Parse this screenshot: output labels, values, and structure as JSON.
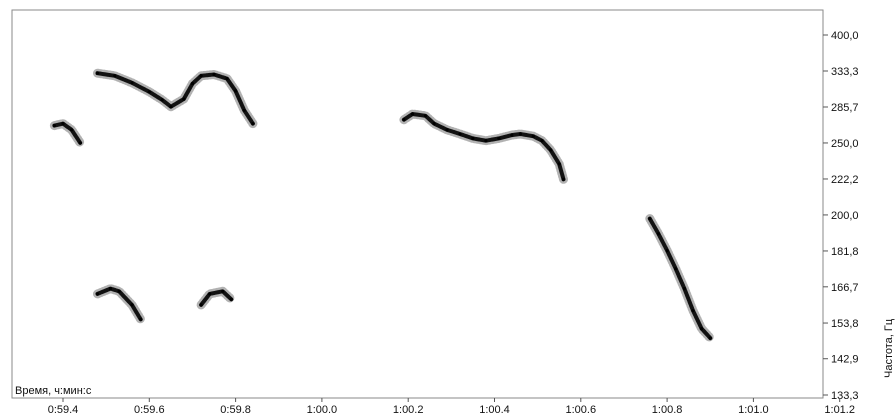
{
  "chart_data": {
    "type": "spectrogram",
    "xlabel": "Время, ч:мин:с",
    "ylabel": "Частота, Гц",
    "x_ticks": [
      "0:59.4",
      "0:59.6",
      "0:59.8",
      "1:00.0",
      "1:00.2",
      "1:00.4",
      "1:00.6",
      "1:00.8",
      "1:01.0",
      "1:01.2"
    ],
    "y_ticks": [
      "400,0",
      "333,3",
      "285,7",
      "250,0",
      "222,2",
      "200,0",
      "181,8",
      "166,7",
      "153,8",
      "142,9",
      "133,3"
    ],
    "y_scale": "reciprocal",
    "colors": {
      "background": "#ffffff",
      "mark": "#000000",
      "frame": "#8a8a8a"
    },
    "series": [
      {
        "values": [
          [
            59.38,
            266
          ],
          [
            59.4,
            268
          ],
          [
            59.42,
            262
          ],
          [
            59.44,
            250
          ]
        ]
      },
      {
        "values": [
          [
            59.48,
            330
          ],
          [
            59.52,
            326
          ],
          [
            59.56,
            316
          ],
          [
            59.6,
            304
          ],
          [
            59.63,
            294
          ],
          [
            59.65,
            286
          ],
          [
            59.68,
            295
          ],
          [
            59.7,
            315
          ],
          [
            59.72,
            326
          ],
          [
            59.75,
            328
          ],
          [
            59.78,
            322
          ],
          [
            59.8,
            305
          ],
          [
            59.82,
            282
          ],
          [
            59.84,
            268
          ]
        ]
      },
      {
        "values": [
          [
            60.19,
            272
          ],
          [
            60.21,
            278
          ],
          [
            60.24,
            276
          ],
          [
            60.26,
            268
          ],
          [
            60.29,
            262
          ],
          [
            60.32,
            258
          ],
          [
            60.35,
            254
          ],
          [
            60.38,
            252
          ],
          [
            60.41,
            254
          ],
          [
            60.44,
            257
          ],
          [
            60.46,
            258
          ],
          [
            60.49,
            256
          ],
          [
            60.51,
            252
          ],
          [
            60.53,
            244
          ],
          [
            60.55,
            233
          ],
          [
            60.56,
            222
          ]
        ]
      },
      {
        "values": [
          [
            60.76,
            198
          ],
          [
            60.78,
            190
          ],
          [
            60.8,
            182
          ],
          [
            60.82,
            174
          ],
          [
            60.84,
            166
          ],
          [
            60.86,
            158
          ],
          [
            60.88,
            152
          ],
          [
            60.9,
            149
          ]
        ]
      },
      {
        "values": [
          [
            59.48,
            164
          ],
          [
            59.51,
            166
          ],
          [
            59.53,
            165
          ],
          [
            59.56,
            160
          ],
          [
            59.58,
            155
          ]
        ]
      },
      {
        "values": [
          [
            59.72,
            160
          ],
          [
            59.74,
            164
          ],
          [
            59.77,
            165
          ],
          [
            59.79,
            162
          ]
        ]
      }
    ]
  }
}
